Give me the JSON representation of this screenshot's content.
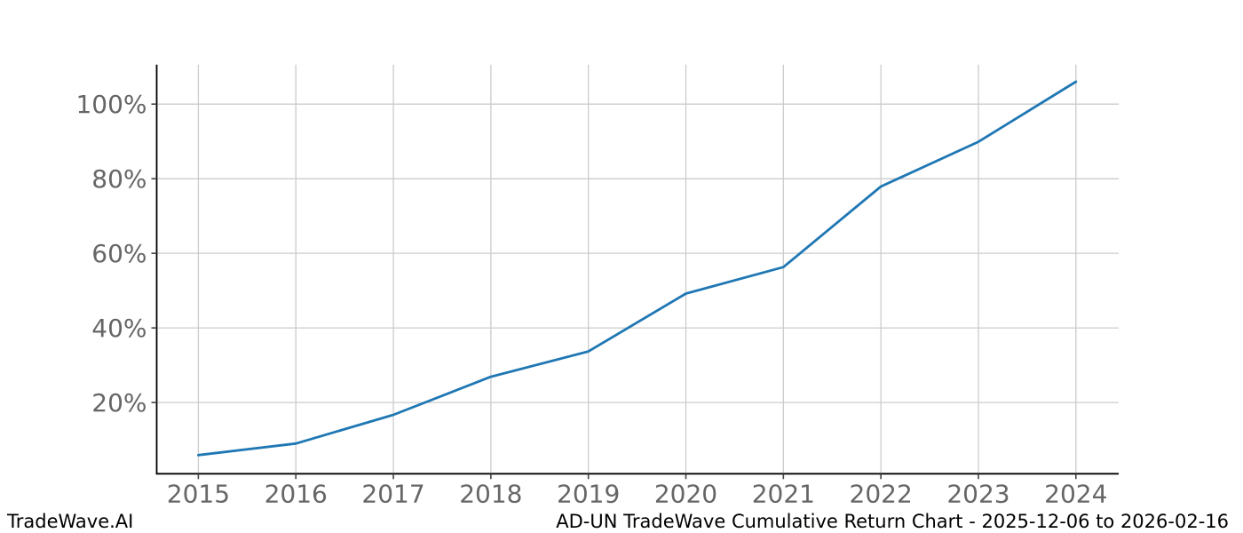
{
  "chart_data": {
    "type": "line",
    "x": [
      2015,
      2016,
      2017,
      2018,
      2019,
      2020,
      2021,
      2022,
      2023,
      2024
    ],
    "series": [
      {
        "name": "AD-UN cumulative return",
        "values": [
          5.9,
          9.0,
          16.7,
          26.9,
          33.7,
          49.2,
          56.3,
          77.9,
          89.9,
          106.0
        ]
      }
    ],
    "unit": "%",
    "title": "",
    "xlabel": "",
    "ylabel": "",
    "x_tick_labels": [
      "2015",
      "2016",
      "2017",
      "2018",
      "2019",
      "2020",
      "2021",
      "2022",
      "2023",
      "2024"
    ],
    "y_ticks": [
      20,
      40,
      60,
      80,
      100
    ],
    "y_tick_labels": [
      "20%",
      "40%",
      "60%",
      "80%",
      "100%"
    ],
    "xlim": [
      2014.573,
      2024.439
    ],
    "ylim": [
      0.9,
      110.6
    ],
    "grid": true,
    "legend": "none",
    "line_color": "#1f77b4",
    "grid_color": "#cccccc",
    "spine_color": "#000000",
    "tick_mark_color": "#444444",
    "tick_label_color": "#666666",
    "background_color": "#ffffff"
  },
  "footer": {
    "brand": "TradeWave.AI",
    "caption": "AD-UN TradeWave Cumulative Return Chart - 2025-12-06 to 2026-02-16"
  }
}
